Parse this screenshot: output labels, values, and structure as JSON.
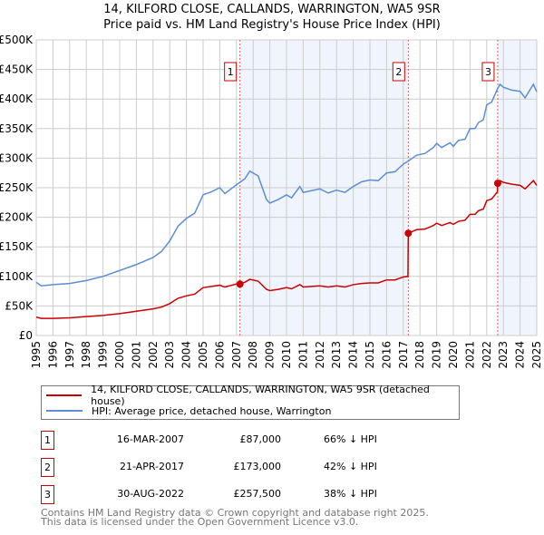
{
  "chart_data": {
    "type": "line",
    "title": "14, KILFORD CLOSE, CALLANDS, WARRINGTON, WA5 9SR",
    "subtitle": "Price paid vs. HM Land Registry's House Price Index (HPI)",
    "xlim": [
      1995,
      2025
    ],
    "ylim": [
      0,
      500000
    ],
    "x_ticks": [
      "1995",
      "1996",
      "1997",
      "1998",
      "1999",
      "2000",
      "2001",
      "2002",
      "2003",
      "2004",
      "2005",
      "2006",
      "2007",
      "2008",
      "2009",
      "2010",
      "2011",
      "2012",
      "2013",
      "2014",
      "2015",
      "2016",
      "2017",
      "2018",
      "2019",
      "2020",
      "2021",
      "2022",
      "2023",
      "2024",
      "2025"
    ],
    "y_ticks": [
      {
        "v": 0,
        "l": "£0"
      },
      {
        "v": 50000,
        "l": "£50K"
      },
      {
        "v": 100000,
        "l": "£100K"
      },
      {
        "v": 150000,
        "l": "£150K"
      },
      {
        "v": 200000,
        "l": "£200K"
      },
      {
        "v": 250000,
        "l": "£250K"
      },
      {
        "v": 300000,
        "l": "£300K"
      },
      {
        "v": 350000,
        "l": "£350K"
      },
      {
        "v": 400000,
        "l": "£400K"
      },
      {
        "v": 450000,
        "l": "£450K"
      },
      {
        "v": 500000,
        "l": "£500K"
      }
    ],
    "grid": true,
    "series": [
      {
        "name": "14, KILFORD CLOSE, CALLANDS, WARRINGTON, WA5 9SR (detached house)",
        "color": "#cc0000",
        "x": [
          1995,
          1995.3,
          1996,
          1997,
          1998,
          1999,
          2000,
          2001,
          2002,
          2002.5,
          2003,
          2003.5,
          2004,
          2004.5,
          2005,
          2005.5,
          2006,
          2006.3,
          2007,
          2007.5,
          2007.8,
          2008.3,
          2008.8,
          2009,
          2009.5,
          2010,
          2010.3,
          2010.8,
          2011,
          2011.5,
          2012,
          2012.5,
          2013,
          2013.5,
          2014,
          2014.5,
          2015,
          2015.5,
          2016,
          2016.5,
          2017,
          2017.28,
          2017.3,
          2017.8,
          2018.3,
          2018.8,
          2019,
          2019.3,
          2019.8,
          2020,
          2020.3,
          2020.7,
          2021,
          2021.3,
          2021.5,
          2021.8,
          2022,
          2022.3,
          2022.64,
          2022.66,
          2022.8,
          2023,
          2023.5,
          2024,
          2024.3,
          2024.8,
          2025
        ],
        "y": [
          31000,
          29000,
          29000,
          30000,
          32000,
          34000,
          37000,
          41000,
          45000,
          48000,
          54000,
          63000,
          67000,
          70000,
          81000,
          83000,
          85000,
          82000,
          87000,
          90000,
          95000,
          92000,
          78000,
          76000,
          78000,
          81000,
          79000,
          86000,
          82000,
          83000,
          84000,
          82000,
          84000,
          82000,
          86000,
          88000,
          89000,
          89000,
          94000,
          94000,
          99000,
          100000,
          173000,
          179000,
          180000,
          186000,
          190000,
          186000,
          191000,
          188000,
          193000,
          195000,
          205000,
          205000,
          211000,
          214000,
          228000,
          231000,
          243000,
          257500,
          262000,
          259000,
          256000,
          254000,
          248000,
          262000,
          254000
        ]
      },
      {
        "name": "HPI: Average price, detached house, Warrington",
        "color": "#5b8fd4",
        "x": [
          1995,
          1995.3,
          1996,
          1997,
          1998,
          1999,
          2000,
          2001,
          2002,
          2002.5,
          2003,
          2003.5,
          2004,
          2004.5,
          2005,
          2005.5,
          2006,
          2006.3,
          2007,
          2007.5,
          2007.8,
          2008.3,
          2008.8,
          2009,
          2009.5,
          2010,
          2010.3,
          2010.8,
          2011,
          2011.5,
          2012,
          2012.5,
          2013,
          2013.5,
          2014,
          2014.5,
          2015,
          2015.5,
          2016,
          2016.5,
          2017,
          2017.3,
          2017.8,
          2018.3,
          2018.8,
          2019,
          2019.3,
          2019.8,
          2020,
          2020.3,
          2020.7,
          2021,
          2021.3,
          2021.5,
          2021.8,
          2022,
          2022.3,
          2022.66,
          2022.8,
          2023,
          2023.5,
          2024,
          2024.3,
          2024.8,
          2025
        ],
        "y": [
          90000,
          84000,
          86000,
          88000,
          93000,
          100000,
          110000,
          120000,
          132000,
          142000,
          160000,
          185000,
          198000,
          207000,
          238000,
          243000,
          250000,
          240000,
          255000,
          265000,
          278000,
          270000,
          230000,
          224000,
          230000,
          238000,
          233000,
          252000,
          242000,
          245000,
          248000,
          241000,
          246000,
          242000,
          252000,
          260000,
          263000,
          262000,
          275000,
          277000,
          290000,
          295000,
          305000,
          308000,
          318000,
          325000,
          318000,
          326000,
          320000,
          330000,
          332000,
          350000,
          350000,
          360000,
          365000,
          390000,
          395000,
          418000,
          425000,
          420000,
          415000,
          413000,
          402000,
          425000,
          412000
        ]
      }
    ],
    "sales": [
      {
        "id": "1",
        "x": 2007.21,
        "y": 87000,
        "date": "16-MAR-2007",
        "price": "£87,000",
        "delta": "66% ↓ HPI"
      },
      {
        "id": "2",
        "x": 2017.3,
        "y": 173000,
        "date": "21-APR-2017",
        "price": "£173,000",
        "delta": "42% ↓ HPI"
      },
      {
        "id": "3",
        "x": 2022.66,
        "y": 257500,
        "date": "30-AUG-2022",
        "price": "£257,500",
        "delta": "38% ↓ HPI"
      }
    ],
    "shaded_ranges": [
      [
        2007.21,
        2017.3
      ],
      [
        2022.66,
        2025
      ]
    ],
    "legend_placement": "below"
  },
  "footer": {
    "line1": "Contains HM Land Registry data © Crown copyright and database right 2025.",
    "line2": "This data is licensed under the Open Government Licence v3.0."
  }
}
